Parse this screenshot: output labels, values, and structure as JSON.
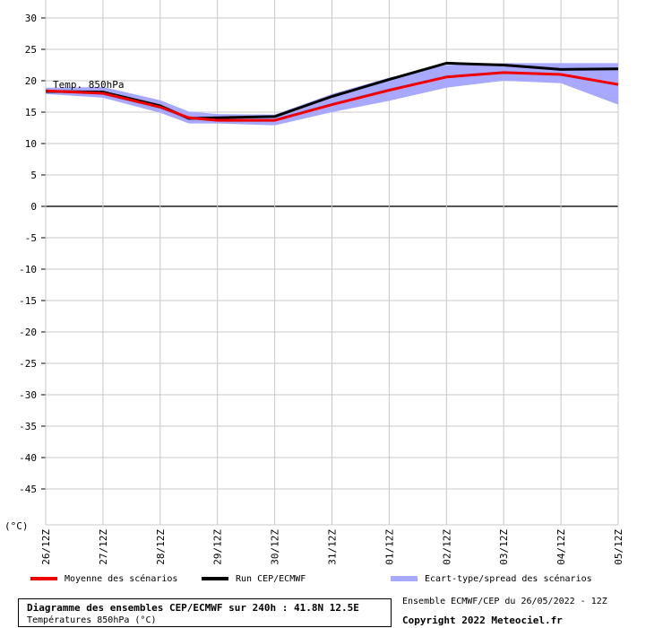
{
  "chart_data": {
    "type": "line",
    "title": "Diagramme des ensembles CEP/ECMWF sur 240h : 41.8N 12.5E",
    "subtitle": "Températures 850hPa (°C)",
    "ylabel": "(°C)",
    "series_annotation": "Temp. 850hPa",
    "categories": [
      "26/12Z",
      "27/12Z",
      "28/12Z",
      "29/12Z",
      "30/12Z",
      "31/12Z",
      "01/12Z",
      "02/12Z",
      "03/12Z",
      "04/12Z",
      "05/12Z"
    ],
    "x": [
      0,
      1,
      2,
      2.5,
      3,
      4,
      5,
      6,
      7,
      8,
      9,
      10
    ],
    "yticks": [
      30,
      25,
      20,
      15,
      10,
      5,
      0,
      -5,
      -10,
      -15,
      -20,
      -25,
      -30,
      -35,
      -40,
      -45
    ],
    "ylim": [
      -50,
      31.5
    ],
    "grid": true,
    "legend_position": "bottom",
    "series": [
      {
        "name": "Moyenne des scénarios",
        "kind": "line",
        "color": "#ee0000",
        "values": [
          18.4,
          18.0,
          15.8,
          14.1,
          13.7,
          13.7,
          16.2,
          18.5,
          20.6,
          21.3,
          21.0,
          19.4
        ]
      },
      {
        "name": "Run CEP/ECMWF",
        "kind": "line",
        "color": "#000000",
        "values": [
          18.3,
          18.2,
          16.0,
          14.0,
          14.1,
          14.3,
          17.5,
          20.2,
          22.8,
          22.5,
          21.8,
          21.9
        ]
      },
      {
        "name": "Ecart-type/spread des scénarios",
        "kind": "band",
        "color": "#a8a8ff",
        "upper": [
          18.9,
          19.0,
          16.9,
          15.1,
          14.7,
          14.6,
          17.9,
          20.5,
          22.5,
          22.8,
          22.8,
          22.8
        ],
        "lower": [
          17.9,
          17.3,
          14.9,
          13.2,
          13.2,
          12.9,
          15.0,
          16.8,
          18.9,
          20.0,
          19.6,
          16.2
        ]
      }
    ]
  },
  "footer": {
    "source": "Ensemble ECMWF/CEP du 26/05/2022 - 12Z",
    "copyright": "Copyright 2022 Meteociel.fr"
  }
}
